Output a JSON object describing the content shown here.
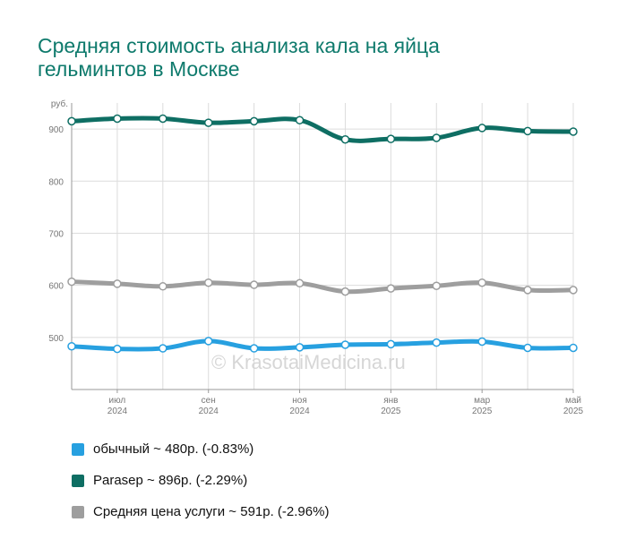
{
  "title": {
    "line1": "Средняя стоимость анализа кала на яйца",
    "line2": "гельминтов в Москве"
  },
  "watermark": "© KrasotaiMedicina.ru",
  "chart_data": {
    "type": "line",
    "y_unit": "руб.",
    "ylim": [
      400,
      950
    ],
    "yticks": [
      500,
      600,
      700,
      800,
      900
    ],
    "grid": true,
    "x_ticks": [
      {
        "month": "июл",
        "year": "2024",
        "idx": 1
      },
      {
        "month": "сен",
        "year": "2024",
        "idx": 3
      },
      {
        "month": "ноя",
        "year": "2024",
        "idx": 5
      },
      {
        "month": "янв",
        "year": "2025",
        "idx": 7
      },
      {
        "month": "мар",
        "year": "2025",
        "idx": 9
      },
      {
        "month": "май",
        "year": "2025",
        "idx": 11
      }
    ],
    "x": [
      "2024-06",
      "2024-07",
      "2024-08",
      "2024-09",
      "2024-10",
      "2024-11",
      "2024-12",
      "2025-01",
      "2025-02",
      "2025-03",
      "2025-04",
      "2025-05"
    ],
    "series": [
      {
        "name": "Parasep",
        "color": "#0e6e63",
        "values": [
          915,
          920,
          920,
          912,
          915,
          917,
          880,
          881,
          883,
          902,
          896,
          895
        ]
      },
      {
        "name": "Средняя цена услуги",
        "color": "#9e9e9e",
        "values": [
          607,
          603,
          598,
          605,
          601,
          604,
          588,
          594,
          599,
          605,
          591,
          591
        ]
      },
      {
        "name": "обычный",
        "color": "#27a0e0",
        "values": [
          483,
          478,
          479,
          493,
          479,
          481,
          486,
          487,
          490,
          492,
          480,
          480
        ]
      }
    ]
  },
  "legend": [
    {
      "color": "#27a0e0",
      "label": "обычный ~ 480р. (-0.83%)"
    },
    {
      "color": "#0e6e63",
      "label": "Parasep ~ 896р. (-2.29%)"
    },
    {
      "color": "#9e9e9e",
      "label": "Средняя цена услуги ~ 591р. (-2.96%)"
    }
  ]
}
